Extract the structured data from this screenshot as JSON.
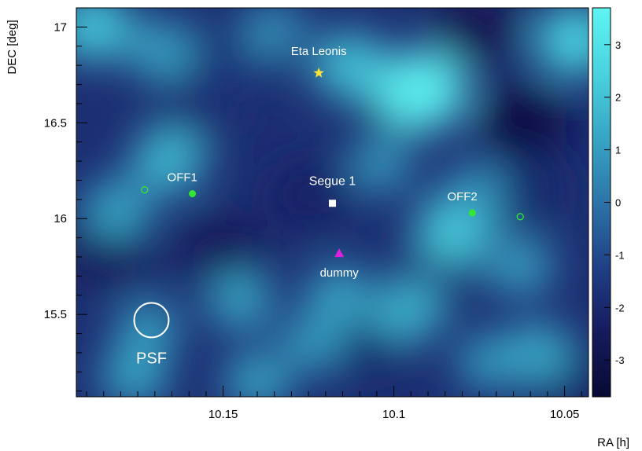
{
  "chart_data": {
    "type": "heatmap",
    "title": "",
    "xlabel": "RA [h]",
    "ylabel": "DEC [deg]",
    "x_axis_reversed": true,
    "xlim": [
      10.193,
      10.043
    ],
    "ylim": [
      15.07,
      17.1
    ],
    "x_ticks": [
      {
        "value": 10.15,
        "label": "10.15"
      },
      {
        "value": 10.1,
        "label": "10.1"
      },
      {
        "value": 10.05,
        "label": "10.05"
      }
    ],
    "y_ticks": [
      {
        "value": 15.5,
        "label": "15.5"
      },
      {
        "value": 16,
        "label": "16"
      },
      {
        "value": 16.5,
        "label": "16.5"
      },
      {
        "value": 17,
        "label": "17"
      }
    ],
    "colorbar": {
      "range": [
        -3.7,
        3.7
      ],
      "ticks": [
        {
          "value": 3,
          "label": "3"
        },
        {
          "value": 2,
          "label": "2"
        },
        {
          "value": 1,
          "label": "1"
        },
        {
          "value": 0,
          "label": "0"
        },
        {
          "value": -1,
          "label": "-1"
        },
        {
          "value": -2,
          "label": "-2"
        },
        {
          "value": -3,
          "label": "-3"
        }
      ],
      "colors": [
        "#070a33",
        "#161b5e",
        "#1f3f86",
        "#2c74a8",
        "#38a6c6",
        "#49d2de",
        "#5ef5f3"
      ]
    },
    "hotspots": [
      {
        "ra": 10.092,
        "dec": 16.67,
        "value": 3.5
      },
      {
        "ra": 10.113,
        "dec": 16.8,
        "value": 2.0
      },
      {
        "ra": 10.188,
        "dec": 17.0,
        "value": 2.2
      },
      {
        "ra": 10.047,
        "dec": 16.93,
        "value": 2.5
      },
      {
        "ra": 10.166,
        "dec": 16.3,
        "value": 1.8
      },
      {
        "ra": 10.181,
        "dec": 16.05,
        "value": 1.3
      },
      {
        "ra": 10.082,
        "dec": 15.95,
        "value": 2.3
      },
      {
        "ra": 10.096,
        "dec": 15.52,
        "value": 1.6
      },
      {
        "ra": 10.116,
        "dec": 15.6,
        "value": 1.2
      },
      {
        "ra": 10.124,
        "dec": 15.35,
        "value": 1.0
      },
      {
        "ra": 10.145,
        "dec": 15.57,
        "value": 1.2
      },
      {
        "ra": 10.172,
        "dec": 15.43,
        "value": 1.0
      },
      {
        "ra": 10.058,
        "dec": 15.3,
        "value": 1.4
      },
      {
        "ra": 10.072,
        "dec": 15.25,
        "value": 1.0
      },
      {
        "ra": 10.063,
        "dec": 15.75,
        "value": 1.1
      },
      {
        "ra": 10.168,
        "dec": 16.88,
        "value": 1.2
      },
      {
        "ra": 10.076,
        "dec": 16.15,
        "value": 0.8
      },
      {
        "ra": 10.104,
        "dec": 16.28,
        "value": 0.9
      },
      {
        "ra": 10.14,
        "dec": 15.15,
        "value": 1.2
      },
      {
        "ra": 10.176,
        "dec": 15.18,
        "value": 1.3
      },
      {
        "ra": 10.135,
        "dec": 16.98,
        "value": 0.8
      }
    ],
    "coldspots": [
      {
        "ra": 10.062,
        "dec": 16.5,
        "value": -3.2
      },
      {
        "ra": 10.076,
        "dec": 17.0,
        "value": -2.8
      },
      {
        "ra": 10.15,
        "dec": 15.82,
        "value": -2.6
      },
      {
        "ra": 10.184,
        "dec": 15.84,
        "value": -2.6
      },
      {
        "ra": 10.125,
        "dec": 16.12,
        "value": -2.2
      },
      {
        "ra": 10.1,
        "dec": 16.6,
        "value": -1.8
      },
      {
        "ra": 10.048,
        "dec": 15.15,
        "value": -2.2
      },
      {
        "ra": 10.158,
        "dec": 16.58,
        "value": -1.8
      },
      {
        "ra": 10.062,
        "dec": 16.15,
        "value": -2.0
      },
      {
        "ra": 10.108,
        "dec": 15.35,
        "value": -2.0
      },
      {
        "ra": 10.145,
        "dec": 16.85,
        "value": -1.6
      },
      {
        "ra": 10.088,
        "dec": 15.7,
        "value": -1.7
      }
    ],
    "markers": [
      {
        "label": "Eta Leonis",
        "ra": 10.122,
        "dec": 16.76,
        "shape": "star",
        "color": "#ffe23a"
      },
      {
        "label": "Segue 1",
        "ra": 10.118,
        "dec": 16.08,
        "shape": "square",
        "color": "#ffffff"
      },
      {
        "label": "dummy",
        "ra": 10.116,
        "dec": 15.82,
        "shape": "triangle",
        "color": "#e020e0"
      },
      {
        "label": "OFF1",
        "ra": 10.159,
        "dec": 16.13,
        "shape": "dot",
        "color": "#32e832"
      },
      {
        "label": "",
        "ra": 10.173,
        "dec": 16.15,
        "shape": "ring",
        "color": "#32e832"
      },
      {
        "label": "OFF2",
        "ra": 10.077,
        "dec": 16.03,
        "shape": "dot",
        "color": "#32e832"
      },
      {
        "label": "",
        "ra": 10.063,
        "dec": 16.01,
        "shape": "ring",
        "color": "#32e832"
      }
    ],
    "psf": {
      "label": "PSF",
      "ra": 10.171,
      "dec": 15.47,
      "radius_deg": 0.09
    }
  }
}
